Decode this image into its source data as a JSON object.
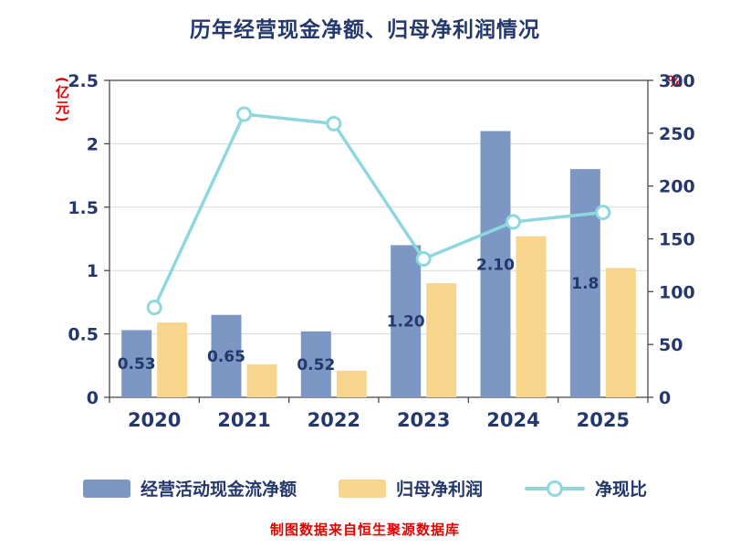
{
  "title": "历年经营现金净额、归母净利润情况",
  "caption": "制图数据来自恒生聚源数据库",
  "axes": {
    "left_unit": "(亿元)",
    "right_unit": "%"
  },
  "legend": [
    {
      "label": "经营活动现金流净额"
    },
    {
      "label": "归母净利润"
    },
    {
      "label": "净现比"
    }
  ],
  "colors": {
    "bar_blue": "#7d97c5",
    "bar_yellow": "#f8d58c",
    "line_teal": "#8ed8dd",
    "text_navy": "#24386b",
    "accent_red": "#e60000",
    "grid_gray": "#d9d9d9",
    "axis_border": "#4a4a4a"
  },
  "chart_data": {
    "type": "bar",
    "subtype": "bar+line-combo",
    "title": "历年经营现金净额、归母净利润情况",
    "categories": [
      "2020",
      "2021",
      "2022",
      "2023",
      "2024",
      "2025"
    ],
    "series": [
      {
        "name": "经营活动现金流净额",
        "type": "bar",
        "axis": "left",
        "color": "#7d97c5",
        "values": [
          0.53,
          0.65,
          0.52,
          1.2,
          2.1,
          1.8
        ],
        "labels": [
          "0.53",
          "0.65",
          "0.52",
          "1.20",
          "2.10",
          "1.8"
        ]
      },
      {
        "name": "归母净利润",
        "type": "bar",
        "axis": "left",
        "color": "#f8d58c",
        "values": [
          0.59,
          0.26,
          0.21,
          0.9,
          1.27,
          1.02
        ],
        "labels": []
      },
      {
        "name": "净现比",
        "type": "line",
        "axis": "right",
        "color": "#8ed8dd",
        "values": [
          85,
          268,
          259,
          131,
          166,
          175
        ]
      }
    ],
    "left_axis": {
      "label": "(亿元)",
      "min": 0,
      "max": 2.5,
      "ticks": [
        0,
        0.5,
        1,
        1.5,
        2,
        2.5
      ]
    },
    "right_axis": {
      "label": "%",
      "min": 0,
      "max": 300,
      "ticks": [
        0,
        50,
        100,
        150,
        200,
        250,
        300
      ]
    },
    "grid": true,
    "legend_position": "bottom"
  }
}
